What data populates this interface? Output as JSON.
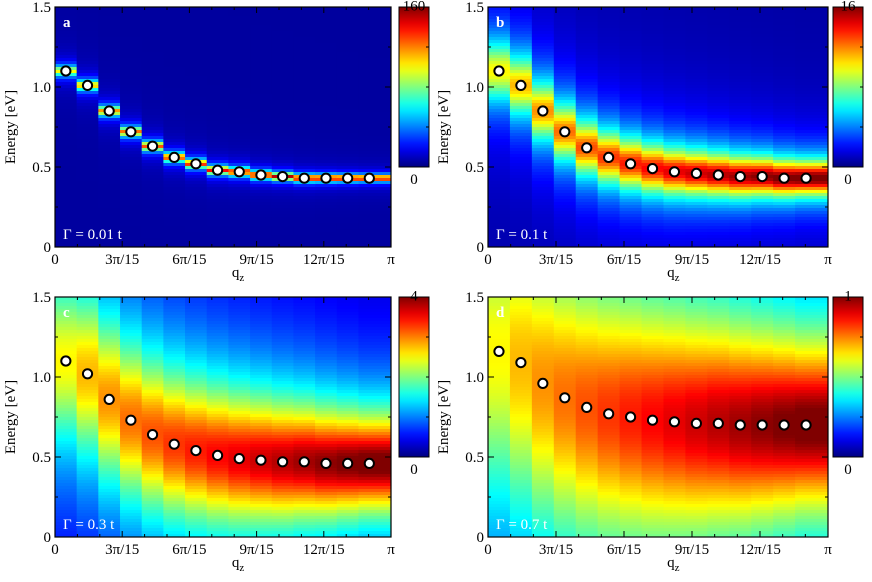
{
  "chart_data": [
    {
      "type": "heatmap",
      "panel_label": "a",
      "annotation": "Γ = 0.01 t",
      "ylabel": "Energy [eV]",
      "xlabel": "q",
      "xlabel_sub": "z",
      "x_ticks": [
        "0",
        "3π/15",
        "6π/15",
        "9π/15",
        "12π/15",
        "π"
      ],
      "y_ticks": [
        "0",
        "0.5",
        "1.0",
        "1.5"
      ],
      "ylim": [
        0,
        1.5
      ],
      "colorbar": {
        "min": 0,
        "max": 160,
        "min_label": "0",
        "max_label": "160",
        "colormap": "jet"
      },
      "peak_width": 0.015,
      "points": [
        {
          "k": 0,
          "e": 1.1
        },
        {
          "k": 1,
          "e": 1.01
        },
        {
          "k": 2,
          "e": 0.85
        },
        {
          "k": 3,
          "e": 0.72
        },
        {
          "k": 4,
          "e": 0.63
        },
        {
          "k": 5,
          "e": 0.56
        },
        {
          "k": 6,
          "e": 0.52
        },
        {
          "k": 7,
          "e": 0.48
        },
        {
          "k": 8,
          "e": 0.47
        },
        {
          "k": 9,
          "e": 0.45
        },
        {
          "k": 10,
          "e": 0.44
        },
        {
          "k": 11,
          "e": 0.43
        },
        {
          "k": 12,
          "e": 0.43
        },
        {
          "k": 13,
          "e": 0.43
        },
        {
          "k": 14,
          "e": 0.43
        }
      ]
    },
    {
      "type": "heatmap",
      "panel_label": "b",
      "annotation": "Γ = 0.1 t",
      "ylabel": "Energy [eV]",
      "xlabel": "q",
      "xlabel_sub": "z",
      "x_ticks": [
        "0",
        "3π/15",
        "6π/15",
        "9π/15",
        "12π/15",
        "π"
      ],
      "y_ticks": [
        "0",
        "0.5",
        "1.0",
        "1.5"
      ],
      "ylim": [
        0,
        1.5
      ],
      "colorbar": {
        "min": 0,
        "max": 16,
        "min_label": "0",
        "max_label": "16",
        "colormap": "jet"
      },
      "peak_width": 0.1,
      "points": [
        {
          "k": 0,
          "e": 1.1
        },
        {
          "k": 1,
          "e": 1.01
        },
        {
          "k": 2,
          "e": 0.85
        },
        {
          "k": 3,
          "e": 0.72
        },
        {
          "k": 4,
          "e": 0.62
        },
        {
          "k": 5,
          "e": 0.56
        },
        {
          "k": 6,
          "e": 0.52
        },
        {
          "k": 7,
          "e": 0.49
        },
        {
          "k": 8,
          "e": 0.47
        },
        {
          "k": 9,
          "e": 0.46
        },
        {
          "k": 10,
          "e": 0.45
        },
        {
          "k": 11,
          "e": 0.44
        },
        {
          "k": 12,
          "e": 0.44
        },
        {
          "k": 13,
          "e": 0.43
        },
        {
          "k": 14,
          "e": 0.43
        }
      ]
    },
    {
      "type": "heatmap",
      "panel_label": "c",
      "annotation": "Γ = 0.3 t",
      "ylabel": "Energy [eV]",
      "xlabel": "q",
      "xlabel_sub": "z",
      "x_ticks": [
        "0",
        "3π/15",
        "6π/15",
        "9π/15",
        "12π/15",
        "π"
      ],
      "y_ticks": [
        "0",
        "0.5",
        "1.0",
        "1.5"
      ],
      "ylim": [
        0,
        1.5
      ],
      "colorbar": {
        "min": 0,
        "max": 4,
        "min_label": "0",
        "max_label": "4",
        "colormap": "jet"
      },
      "peak_width": 0.3,
      "points": [
        {
          "k": 0,
          "e": 1.1
        },
        {
          "k": 1,
          "e": 1.02
        },
        {
          "k": 2,
          "e": 0.86
        },
        {
          "k": 3,
          "e": 0.73
        },
        {
          "k": 4,
          "e": 0.64
        },
        {
          "k": 5,
          "e": 0.58
        },
        {
          "k": 6,
          "e": 0.54
        },
        {
          "k": 7,
          "e": 0.51
        },
        {
          "k": 8,
          "e": 0.49
        },
        {
          "k": 9,
          "e": 0.48
        },
        {
          "k": 10,
          "e": 0.47
        },
        {
          "k": 11,
          "e": 0.47
        },
        {
          "k": 12,
          "e": 0.46
        },
        {
          "k": 13,
          "e": 0.46
        },
        {
          "k": 14,
          "e": 0.46
        }
      ]
    },
    {
      "type": "heatmap",
      "panel_label": "d",
      "annotation": "Γ = 0.7 t",
      "ylabel": "Energy [eV]",
      "xlabel": "q",
      "xlabel_sub": "z",
      "x_ticks": [
        "0",
        "3π/15",
        "6π/15",
        "9π/15",
        "12π/15",
        "π"
      ],
      "y_ticks": [
        "0",
        "0.5",
        "1.0",
        "1.5"
      ],
      "ylim": [
        0,
        1.5
      ],
      "colorbar": {
        "min": 0,
        "max": 1,
        "min_label": "0",
        "max_label": "1",
        "colormap": "jet"
      },
      "peak_width": 0.55,
      "points": [
        {
          "k": 0,
          "e": 1.16
        },
        {
          "k": 1,
          "e": 1.09
        },
        {
          "k": 2,
          "e": 0.96
        },
        {
          "k": 3,
          "e": 0.87
        },
        {
          "k": 4,
          "e": 0.81
        },
        {
          "k": 5,
          "e": 0.77
        },
        {
          "k": 6,
          "e": 0.75
        },
        {
          "k": 7,
          "e": 0.73
        },
        {
          "k": 8,
          "e": 0.72
        },
        {
          "k": 9,
          "e": 0.71
        },
        {
          "k": 10,
          "e": 0.71
        },
        {
          "k": 11,
          "e": 0.7
        },
        {
          "k": 12,
          "e": 0.7
        },
        {
          "k": 13,
          "e": 0.7
        },
        {
          "k": 14,
          "e": 0.7
        }
      ]
    }
  ]
}
